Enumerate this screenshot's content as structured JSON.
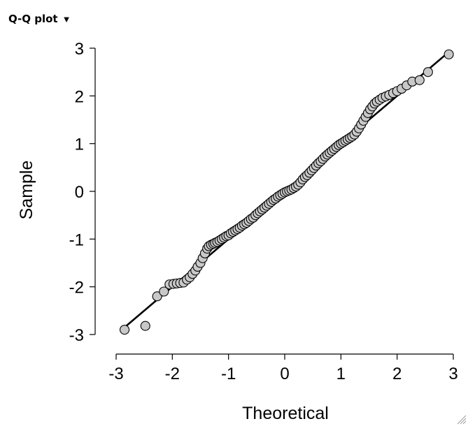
{
  "panel": {
    "title": "Q-Q plot",
    "menu_icon": "triangle-down-icon"
  },
  "resize_icon": "resize-grip-icon",
  "chart_data": {
    "type": "scatter",
    "title": "",
    "xlabel": "Theoretical",
    "ylabel": "Sample",
    "xlim": [
      -3,
      3
    ],
    "ylim": [
      -3,
      3
    ],
    "x_ticks": [
      "-3",
      "-2",
      "-1",
      "0",
      "1",
      "2",
      "3"
    ],
    "y_ticks": [
      "3",
      "2",
      "1",
      "0",
      "-1",
      "-2",
      "-3"
    ],
    "grid": false,
    "reference_line": {
      "from": [
        -2.85,
        -2.85
      ],
      "to": [
        2.95,
        2.95
      ],
      "color": "#000000"
    },
    "marker_fill": "#c8c8c8",
    "marker_stroke": "#000000",
    "points": [
      [
        -2.85,
        -2.9
      ],
      [
        -2.48,
        -2.82
      ],
      [
        -2.27,
        -2.2
      ],
      [
        -2.15,
        -2.1
      ],
      [
        -2.05,
        -1.95
      ],
      [
        -1.98,
        -1.94
      ],
      [
        -1.92,
        -1.93
      ],
      [
        -1.86,
        -1.92
      ],
      [
        -1.8,
        -1.91
      ],
      [
        -1.74,
        -1.85
      ],
      [
        -1.69,
        -1.8
      ],
      [
        -1.64,
        -1.73
      ],
      [
        -1.59,
        -1.66
      ],
      [
        -1.55,
        -1.58
      ],
      [
        -1.5,
        -1.5
      ],
      [
        -1.46,
        -1.4
      ],
      [
        -1.42,
        -1.3
      ],
      [
        -1.38,
        -1.2
      ],
      [
        -1.35,
        -1.15
      ],
      [
        -1.31,
        -1.12
      ],
      [
        -1.27,
        -1.1
      ],
      [
        -1.24,
        -1.08
      ],
      [
        -1.2,
        -1.06
      ],
      [
        -1.16,
        -1.03
      ],
      [
        -1.12,
        -1.0
      ],
      [
        -1.08,
        -0.97
      ],
      [
        -1.04,
        -0.94
      ],
      [
        -1.0,
        -0.92
      ],
      [
        -0.96,
        -0.88
      ],
      [
        -0.92,
        -0.85
      ],
      [
        -0.88,
        -0.82
      ],
      [
        -0.84,
        -0.79
      ],
      [
        -0.8,
        -0.76
      ],
      [
        -0.76,
        -0.72
      ],
      [
        -0.72,
        -0.69
      ],
      [
        -0.68,
        -0.66
      ],
      [
        -0.64,
        -0.62
      ],
      [
        -0.6,
        -0.58
      ],
      [
        -0.56,
        -0.55
      ],
      [
        -0.52,
        -0.5
      ],
      [
        -0.48,
        -0.46
      ],
      [
        -0.44,
        -0.42
      ],
      [
        -0.4,
        -0.38
      ],
      [
        -0.36,
        -0.34
      ],
      [
        -0.32,
        -0.3
      ],
      [
        -0.28,
        -0.26
      ],
      [
        -0.24,
        -0.22
      ],
      [
        -0.2,
        -0.18
      ],
      [
        -0.16,
        -0.15
      ],
      [
        -0.12,
        -0.11
      ],
      [
        -0.08,
        -0.08
      ],
      [
        -0.04,
        -0.05
      ],
      [
        0.0,
        -0.02
      ],
      [
        0.04,
        0.0
      ],
      [
        0.08,
        0.02
      ],
      [
        0.12,
        0.04
      ],
      [
        0.16,
        0.07
      ],
      [
        0.2,
        0.1
      ],
      [
        0.24,
        0.14
      ],
      [
        0.28,
        0.19
      ],
      [
        0.32,
        0.25
      ],
      [
        0.36,
        0.3
      ],
      [
        0.4,
        0.34
      ],
      [
        0.44,
        0.39
      ],
      [
        0.48,
        0.44
      ],
      [
        0.52,
        0.49
      ],
      [
        0.56,
        0.54
      ],
      [
        0.6,
        0.59
      ],
      [
        0.64,
        0.63
      ],
      [
        0.68,
        0.68
      ],
      [
        0.72,
        0.73
      ],
      [
        0.76,
        0.77
      ],
      [
        0.8,
        0.81
      ],
      [
        0.84,
        0.85
      ],
      [
        0.88,
        0.89
      ],
      [
        0.92,
        0.93
      ],
      [
        0.96,
        0.97
      ],
      [
        1.0,
        1.0
      ],
      [
        1.04,
        1.03
      ],
      [
        1.08,
        1.06
      ],
      [
        1.12,
        1.09
      ],
      [
        1.16,
        1.12
      ],
      [
        1.2,
        1.15
      ],
      [
        1.24,
        1.19
      ],
      [
        1.28,
        1.25
      ],
      [
        1.32,
        1.32
      ],
      [
        1.36,
        1.4
      ],
      [
        1.4,
        1.48
      ],
      [
        1.44,
        1.56
      ],
      [
        1.48,
        1.64
      ],
      [
        1.52,
        1.72
      ],
      [
        1.56,
        1.78
      ],
      [
        1.6,
        1.84
      ],
      [
        1.64,
        1.88
      ],
      [
        1.69,
        1.92
      ],
      [
        1.74,
        1.96
      ],
      [
        1.8,
        1.99
      ],
      [
        1.86,
        2.02
      ],
      [
        1.93,
        2.06
      ],
      [
        2.0,
        2.1
      ],
      [
        2.08,
        2.15
      ],
      [
        2.17,
        2.22
      ],
      [
        2.27,
        2.3
      ],
      [
        2.4,
        2.33
      ],
      [
        2.55,
        2.5
      ],
      [
        2.92,
        2.87
      ]
    ]
  }
}
